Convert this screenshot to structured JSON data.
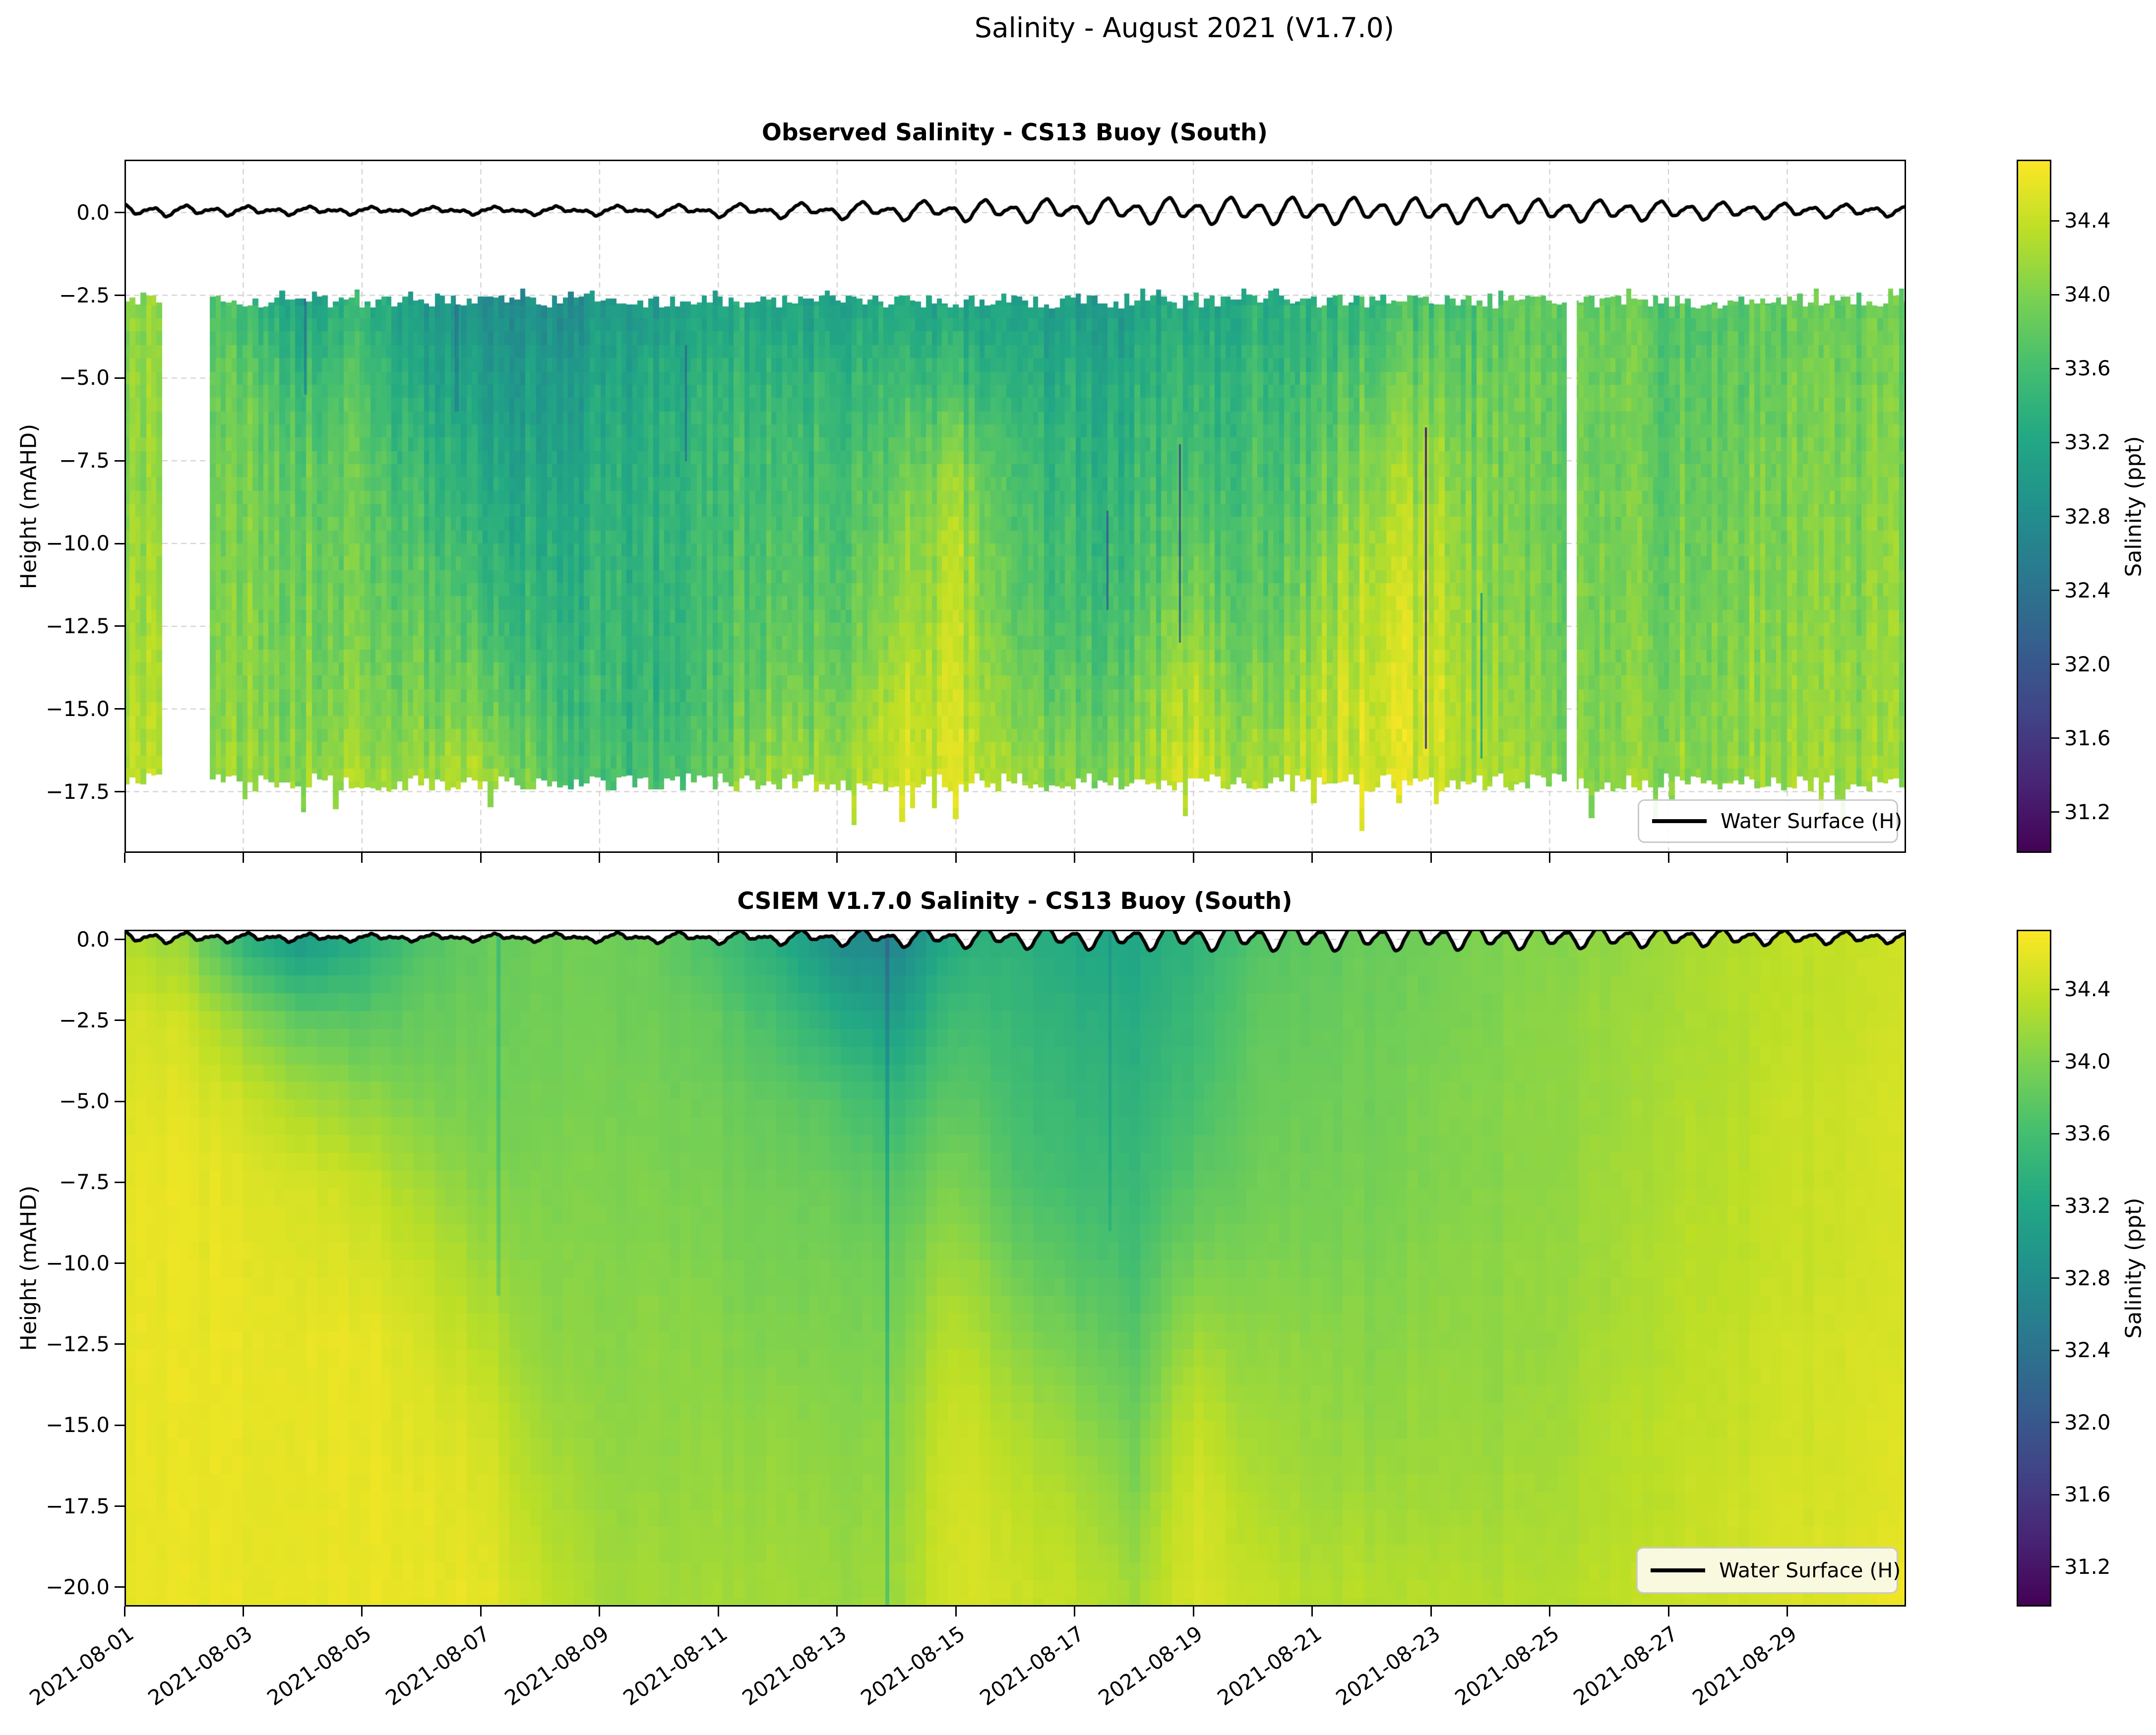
{
  "figure": {
    "suptitle": "Salinity - August 2021 (V1.7.0)"
  },
  "x_axis": {
    "lim_days": [
      0,
      30
    ],
    "start_date": "2021-08-01",
    "tick_days": [
      0,
      2,
      4,
      6,
      8,
      10,
      12,
      14,
      16,
      18,
      20,
      22,
      24,
      26,
      28
    ],
    "tick_labels": [
      "2021-08-01",
      "2021-08-03",
      "2021-08-05",
      "2021-08-07",
      "2021-08-09",
      "2021-08-11",
      "2021-08-13",
      "2021-08-15",
      "2021-08-17",
      "2021-08-19",
      "2021-08-21",
      "2021-08-23",
      "2021-08-25",
      "2021-08-27",
      "2021-08-29"
    ]
  },
  "water_surface": {
    "label": "Water Surface (H)",
    "color": "#000000",
    "mean": 0.06,
    "components": [
      {
        "amp_base": 0.17,
        "amp_mod": 0.12,
        "amp_mod_period": 29,
        "amp_mod_phase": -13,
        "freq": 1.932,
        "phase": 2.0
      },
      {
        "amp_base": 0.1,
        "amp_mod": 0.05,
        "amp_mod_period": 30,
        "amp_mod_phase": -10,
        "freq": 0.966,
        "phase": 1.0
      },
      {
        "amp_base": 0.03,
        "amp_mod": 0.0,
        "amp_mod_period": 30,
        "amp_mod_phase": 0,
        "freq": 3.864,
        "phase": 0.3
      },
      {
        "amp_base": 0.012,
        "amp_mod": 0.0,
        "amp_mod_period": 30,
        "amp_mod_phase": 0,
        "freq": 9.66,
        "phase": 0.8
      }
    ]
  },
  "chart_data": [
    {
      "id": "observed",
      "type": "heatmap",
      "title": "Observed Salinity - CS13 Buoy (South)",
      "ylabel": "Height (mAHD)",
      "legend_label": "Water Surface (H)",
      "y_axis": {
        "lim": [
          1.6,
          -19.35
        ],
        "tick_values": [
          0,
          -2.5,
          -5,
          -7.5,
          -10,
          -12.5,
          -15,
          -17.5
        ],
        "tick_labels": [
          "0.0",
          "−2.5",
          "−5.0",
          "−7.5",
          "−10.0",
          "−12.5",
          "−15.0",
          "−17.5"
        ]
      },
      "colorbar": {
        "label": "Salinity (ppt)",
        "lim": [
          30.98,
          34.73
        ],
        "tick_values": [
          34.4,
          34.0,
          33.6,
          33.2,
          32.8,
          32.4,
          32.0,
          31.6,
          31.2
        ],
        "tick_labels": [
          "34.4",
          "34.0",
          "33.6",
          "33.2",
          "32.8",
          "32.4",
          "32.0",
          "31.6",
          "31.2"
        ]
      },
      "grid_days": [
        0,
        1,
        2,
        3,
        4,
        5,
        6,
        7,
        8,
        9,
        10,
        11,
        12,
        13,
        14,
        15,
        16,
        17,
        18,
        19,
        20,
        21,
        22,
        23,
        24,
        25,
        26,
        27,
        28,
        29,
        30
      ],
      "grid_depths": [
        -2.6,
        -5,
        -7.5,
        -10,
        -12.5,
        -15,
        -17.2
      ],
      "salinity": [
        [
          34.05,
          33.9,
          33.5,
          33.15,
          33.4,
          33.0,
          32.85,
          32.8,
          32.9,
          33.0,
          33.2,
          33.1,
          33.15,
          33.2,
          33.15,
          33.05,
          33.0,
          33.1,
          33.2,
          33.3,
          33.4,
          33.5,
          33.6,
          33.65,
          33.8,
          33.8,
          33.75,
          33.8,
          33.75,
          33.8,
          33.85
        ],
        [
          34.1,
          33.95,
          33.8,
          33.55,
          33.65,
          33.2,
          33.05,
          33.0,
          33.1,
          33.25,
          33.45,
          33.4,
          33.45,
          33.5,
          33.55,
          33.3,
          33.25,
          33.3,
          33.4,
          33.5,
          33.6,
          33.8,
          33.9,
          33.8,
          33.85,
          33.85,
          33.8,
          33.85,
          33.85,
          33.9,
          33.9
        ],
        [
          34.1,
          33.95,
          33.9,
          33.8,
          33.8,
          33.45,
          33.25,
          33.15,
          33.25,
          33.35,
          33.55,
          33.55,
          33.6,
          33.75,
          34.05,
          33.55,
          33.4,
          33.45,
          33.55,
          33.6,
          33.75,
          34.1,
          34.15,
          33.9,
          33.88,
          33.85,
          33.85,
          33.95,
          33.9,
          33.95,
          34.0
        ],
        [
          34.15,
          34.0,
          33.95,
          33.9,
          33.85,
          33.65,
          33.45,
          33.3,
          33.35,
          33.4,
          33.6,
          33.65,
          33.7,
          33.95,
          34.3,
          33.65,
          33.5,
          33.55,
          33.75,
          33.7,
          33.9,
          34.3,
          34.3,
          33.95,
          33.9,
          33.9,
          33.9,
          34.0,
          33.95,
          34.0,
          34.05
        ],
        [
          34.2,
          34.05,
          34.0,
          33.95,
          33.9,
          33.8,
          33.65,
          33.45,
          33.45,
          33.4,
          33.65,
          33.75,
          33.8,
          34.1,
          34.35,
          33.75,
          33.6,
          33.7,
          34.05,
          33.8,
          34.1,
          34.4,
          34.4,
          34.0,
          33.95,
          33.9,
          33.95,
          34.05,
          34.0,
          34.05,
          34.1
        ],
        [
          34.3,
          34.1,
          34.05,
          34.0,
          34.0,
          33.95,
          33.95,
          33.65,
          33.5,
          33.45,
          33.75,
          33.95,
          34.0,
          34.3,
          34.45,
          33.95,
          33.8,
          33.9,
          34.3,
          34.0,
          34.3,
          34.5,
          34.45,
          34.1,
          34.0,
          33.95,
          34.05,
          34.1,
          34.05,
          34.1,
          34.1
        ],
        [
          34.35,
          34.15,
          34.1,
          34.1,
          34.2,
          34.15,
          34.3,
          33.85,
          33.55,
          33.6,
          33.95,
          34.15,
          34.2,
          34.4,
          34.5,
          34.15,
          34.0,
          34.15,
          34.4,
          34.2,
          34.4,
          34.5,
          34.4,
          34.2,
          34.1,
          34.0,
          34.15,
          34.15,
          34.1,
          34.15,
          34.15
        ]
      ],
      "data_gaps_days": [
        [
          0.64,
          1.44
        ],
        [
          24.28,
          24.45
        ]
      ],
      "data_top_depth": -2.5,
      "data_bottom_depth": -16.95,
      "streaks": [
        {
          "day": 21.92,
          "width": 0.04,
          "top": -6.5,
          "bottom": -16.2,
          "delta": -2.8
        },
        {
          "day": 17.78,
          "width": 0.035,
          "top": -7.0,
          "bottom": -13.0,
          "delta": -1.7
        },
        {
          "day": 16.55,
          "width": 0.03,
          "top": -9.0,
          "bottom": -12.0,
          "delta": -1.2
        },
        {
          "day": 22.85,
          "width": 0.03,
          "top": -11.5,
          "bottom": -16.5,
          "delta": -1.1
        },
        {
          "day": 9.45,
          "width": 0.03,
          "top": -4.0,
          "bottom": -7.5,
          "delta": -0.8
        },
        {
          "day": 3.05,
          "width": 0.05,
          "top": -2.6,
          "bottom": -5.5,
          "delta": -0.6
        },
        {
          "day": 5.6,
          "width": 0.06,
          "top": -2.6,
          "bottom": -6.0,
          "delta": -0.5
        }
      ],
      "texture": {
        "col_width_days": 0.09,
        "cell_height_m": 0.4,
        "col_noise": 0.18,
        "cell_noise": 0.1,
        "ragged_edges": true
      }
    },
    {
      "id": "model",
      "type": "heatmap",
      "title": "CSIEM V1.7.0 Salinity - CS13 Buoy (South)",
      "ylabel": "Height (mAHD)",
      "legend_label": "Water Surface (H)",
      "y_axis": {
        "lim": [
          0.3,
          -20.6
        ],
        "tick_values": [
          0,
          -2.5,
          -5,
          -7.5,
          -10,
          -12.5,
          -15,
          -17.5,
          -20
        ],
        "tick_labels": [
          "0.0",
          "−2.5",
          "−5.0",
          "−7.5",
          "−10.0",
          "−12.5",
          "−15.0",
          "−17.5",
          "−20.0"
        ]
      },
      "colorbar": {
        "label": "Salinity (ppt)",
        "lim": [
          30.98,
          34.73
        ],
        "tick_values": [
          34.4,
          34.0,
          33.6,
          33.2,
          32.8,
          32.4,
          32.0,
          31.6,
          31.2
        ],
        "tick_labels": [
          "34.4",
          "34.0",
          "33.6",
          "33.2",
          "32.8",
          "32.4",
          "32.0",
          "31.6",
          "31.2"
        ]
      },
      "grid_days": [
        0,
        1,
        2,
        3,
        4,
        5,
        6,
        7,
        8,
        9,
        10,
        11,
        12,
        13,
        14,
        15,
        16,
        17,
        18,
        19,
        20,
        21,
        22,
        23,
        24,
        25,
        26,
        27,
        28,
        29,
        30
      ],
      "grid_depths": [
        0,
        -2.5,
        -5,
        -7.5,
        -10,
        -12.5,
        -15,
        -17.5,
        -20
      ],
      "salinity": [
        [
          34.3,
          34.1,
          33.4,
          33.0,
          33.3,
          33.7,
          33.85,
          33.9,
          33.9,
          33.85,
          33.6,
          33.3,
          32.8,
          32.7,
          33.3,
          33.4,
          33.2,
          33.2,
          33.4,
          33.7,
          33.8,
          33.85,
          33.9,
          34.0,
          34.05,
          34.1,
          34.2,
          34.3,
          34.35,
          34.4,
          34.45
        ],
        [
          34.5,
          34.45,
          34.1,
          33.8,
          33.75,
          33.85,
          33.9,
          33.92,
          33.93,
          33.9,
          33.8,
          33.6,
          33.3,
          33.1,
          33.6,
          33.5,
          33.35,
          33.3,
          33.5,
          33.8,
          33.85,
          33.9,
          33.95,
          34.0,
          34.1,
          34.15,
          34.2,
          34.3,
          34.35,
          34.4,
          34.45
        ],
        [
          34.55,
          34.55,
          34.45,
          34.25,
          34.1,
          34.0,
          33.95,
          33.95,
          33.96,
          33.95,
          33.9,
          33.8,
          33.7,
          33.5,
          33.8,
          33.6,
          33.45,
          33.4,
          33.6,
          33.85,
          33.9,
          33.92,
          34.0,
          34.05,
          34.1,
          34.15,
          34.25,
          34.3,
          34.4,
          34.45,
          34.5
        ],
        [
          34.6,
          34.6,
          34.55,
          34.5,
          34.4,
          34.2,
          34.05,
          34.0,
          34.0,
          34.0,
          33.95,
          33.9,
          33.85,
          33.75,
          34.0,
          33.7,
          33.55,
          33.5,
          33.75,
          33.9,
          33.95,
          33.95,
          34.0,
          34.05,
          34.1,
          34.2,
          34.25,
          34.35,
          34.4,
          34.45,
          34.5
        ],
        [
          34.6,
          34.6,
          34.6,
          34.55,
          34.5,
          34.4,
          34.2,
          34.05,
          34.02,
          34.05,
          34.0,
          33.95,
          33.95,
          33.9,
          34.2,
          33.9,
          33.7,
          33.6,
          33.95,
          34.0,
          34.0,
          34.0,
          34.05,
          34.1,
          34.15,
          34.2,
          34.3,
          34.35,
          34.4,
          34.45,
          34.5
        ],
        [
          34.6,
          34.6,
          34.6,
          34.6,
          34.6,
          34.5,
          34.35,
          34.1,
          34.05,
          34.1,
          34.05,
          34.0,
          34.0,
          34.0,
          34.35,
          34.1,
          33.9,
          33.75,
          34.2,
          34.1,
          34.1,
          34.05,
          34.1,
          34.1,
          34.15,
          34.25,
          34.3,
          34.4,
          34.45,
          34.5,
          34.5
        ],
        [
          34.6,
          34.6,
          34.6,
          34.6,
          34.6,
          34.55,
          34.5,
          34.2,
          34.1,
          34.1,
          34.1,
          34.1,
          34.05,
          34.1,
          34.45,
          34.3,
          34.1,
          33.9,
          34.4,
          34.2,
          34.15,
          34.1,
          34.15,
          34.15,
          34.2,
          34.3,
          34.35,
          34.4,
          34.45,
          34.5,
          34.55
        ],
        [
          34.6,
          34.6,
          34.6,
          34.6,
          34.6,
          34.6,
          34.55,
          34.3,
          34.15,
          34.15,
          34.15,
          34.15,
          34.1,
          34.15,
          34.5,
          34.4,
          34.25,
          34.05,
          34.5,
          34.3,
          34.2,
          34.2,
          34.2,
          34.2,
          34.25,
          34.3,
          34.35,
          34.45,
          34.5,
          34.5,
          34.55
        ],
        [
          34.6,
          34.6,
          34.6,
          34.6,
          34.6,
          34.6,
          34.6,
          34.4,
          34.2,
          34.2,
          34.2,
          34.2,
          34.15,
          34.2,
          34.5,
          34.45,
          34.35,
          34.2,
          34.5,
          34.4,
          34.3,
          34.3,
          34.3,
          34.3,
          34.3,
          34.35,
          34.4,
          34.45,
          34.5,
          34.55,
          34.65
        ]
      ],
      "data_gaps_days": [],
      "data_top_depth": null,
      "data_bottom_depth": -20.6,
      "streaks": [
        {
          "day": 12.85,
          "width": 0.07,
          "top": 0.3,
          "bottom": -20.6,
          "delta": -0.45
        },
        {
          "day": 6.3,
          "width": 0.06,
          "top": 0.3,
          "bottom": -11.0,
          "delta": -0.3
        },
        {
          "day": 16.6,
          "width": 0.05,
          "top": 0.3,
          "bottom": -9.0,
          "delta": -0.25
        }
      ],
      "texture": {
        "col_width_days": 0.18,
        "cell_height_m": 0.55,
        "col_noise": 0.03,
        "cell_noise": 0.02,
        "ragged_edges": false
      }
    }
  ],
  "style": {
    "grid_color": "#cccccc",
    "spine_color": "#000000",
    "water_line_color": "#000000",
    "viridis_anchors": [
      [
        68,
        1,
        84
      ],
      [
        72,
        36,
        117
      ],
      [
        65,
        68,
        135
      ],
      [
        53,
        95,
        141
      ],
      [
        42,
        120,
        142
      ],
      [
        33,
        145,
        140
      ],
      [
        34,
        168,
        132
      ],
      [
        68,
        190,
        112
      ],
      [
        122,
        209,
        81
      ],
      [
        189,
        223,
        38
      ],
      [
        253,
        231,
        37
      ]
    ]
  }
}
